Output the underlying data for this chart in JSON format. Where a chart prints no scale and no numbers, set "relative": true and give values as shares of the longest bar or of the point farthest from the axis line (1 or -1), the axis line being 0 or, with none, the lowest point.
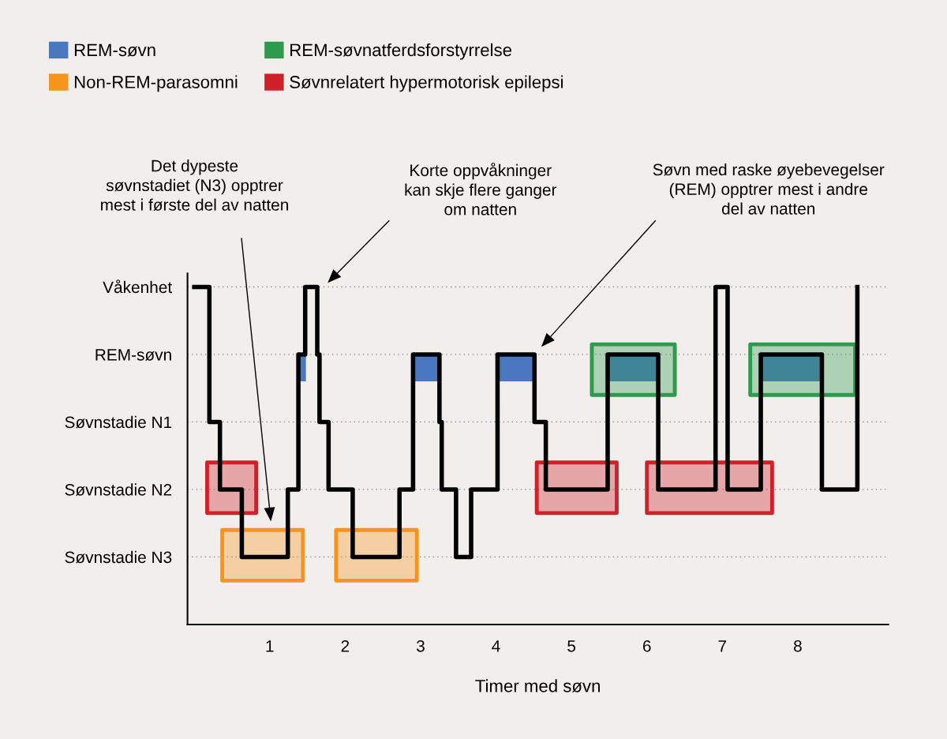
{
  "chart_data": {
    "type": "step",
    "relative": true,
    "xlabel": "Timer med søvn",
    "xlim": [
      -0.09,
      9.2
    ],
    "xticks": [
      1,
      2,
      3,
      4,
      5,
      6,
      7,
      8
    ],
    "y_categories": [
      "Våkenhet",
      "REM-søvn",
      "Søvnstadie N1",
      "Søvnstadie N2",
      "Søvnstadie N3"
    ],
    "grid": "y",
    "legend": "top left",
    "series": [
      {
        "type": "area",
        "name": "REM-søvn",
        "color": "#4a78c0",
        "x": [
          1.38,
          1.38,
          1.48,
          1.48,
          null,
          2.9,
          2.9,
          3.25,
          3.25,
          null,
          4.02,
          4.02,
          4.51,
          4.51,
          null,
          5.48,
          5.48,
          6.15,
          6.15,
          null,
          7.51,
          7.51,
          8.32,
          8.32
        ],
        "values": [
          0.72,
          0.8,
          0.8,
          0.72,
          null,
          0.72,
          0.8,
          0.8,
          0.72,
          null,
          0.72,
          0.8,
          0.8,
          0.72,
          null,
          0.72,
          0.8,
          0.8,
          0.72,
          null,
          0.72,
          0.8,
          0.8,
          0.72
        ]
      },
      {
        "color": "#000000",
        "x": [
          0,
          0.2,
          0.34,
          0.63,
          1.24,
          1.38,
          1.47,
          1.63,
          1.66,
          1.78,
          2.1,
          2.72,
          2.9,
          3.25,
          3.28,
          3.47,
          3.67,
          4.02,
          4.51,
          4.66,
          5.48,
          6.15,
          6.91,
          7.07,
          7.51,
          8.32,
          8.79
        ],
        "values": [
          1,
          0.6,
          0.4,
          0.2,
          0.4,
          0.8,
          1,
          0.8,
          0.6,
          0.4,
          0.2,
          0.4,
          0.8,
          0.6,
          0.4,
          0.2,
          0.4,
          0.8,
          0.6,
          0.4,
          0.8,
          0.4,
          1,
          0.4,
          0.8,
          0.4,
          1
        ]
      },
      {
        "type": "area",
        "name": "REM-søvnatferdsforstyrrelse",
        "color": "#2e9a4e",
        "x": [
          5.27,
          5.27,
          6.37,
          6.37,
          null,
          7.37,
          7.37,
          8.76,
          8.76
        ],
        "values": [
          0.68,
          0.83,
          0.83,
          0.68,
          null,
          0.68,
          0.83,
          0.83,
          0.68
        ]
      },
      {
        "type": "area",
        "name": "Non-REM-parasomni",
        "color": "#f7941d",
        "x": [
          0.37,
          0.37,
          1.44,
          1.44,
          null,
          1.88,
          1.88,
          2.95,
          2.95
        ],
        "values": [
          0.13,
          0.28,
          0.28,
          0.13,
          null,
          0.13,
          0.28,
          0.28,
          0.13
        ]
      },
      {
        "type": "area",
        "name": "Søvnrelatert hypermotorisk epilepsi",
        "color": "#d0202a",
        "x": [
          0.17,
          0.17,
          0.82,
          0.82,
          null,
          4.54,
          4.54,
          5.6,
          5.6,
          null,
          6.0,
          6.0,
          7.66,
          7.66
        ],
        "values": [
          0.33,
          0.48,
          0.48,
          0.33,
          null,
          0.33,
          0.48,
          0.48,
          0.33,
          null,
          0.33,
          0.48,
          0.48,
          0.33
        ]
      }
    ],
    "annotations": [
      "Det dypeste\nsøvnstadiet (N3) opptrer\nmest i første del av natten",
      "Korte oppvåkninger\nkan skje flere ganger\nom natten",
      "Søvn med raske øyebevegelser\n(REM) opptrer mest i andre\ndel av natten"
    ]
  }
}
